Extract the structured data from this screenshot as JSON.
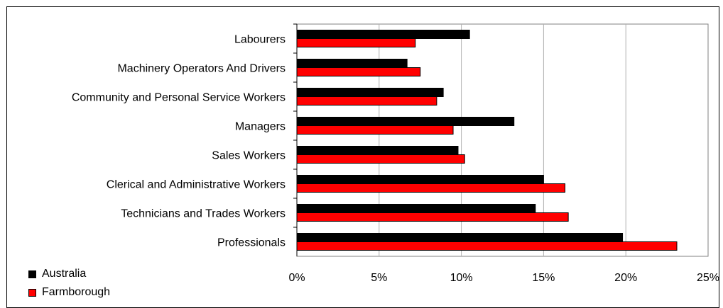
{
  "chart_data": {
    "type": "bar",
    "orientation": "horizontal",
    "title": "",
    "xlabel": "",
    "ylabel": "",
    "categories": [
      "Labourers",
      "Machinery Operators And Drivers",
      "Community and Personal Service Workers",
      "Managers",
      "Sales Workers",
      "Clerical and Administrative Workers",
      "Technicians and Trades Workers",
      "Professionals"
    ],
    "series": [
      {
        "name": "Australia",
        "color": "#000000",
        "values": [
          10.5,
          6.7,
          8.9,
          13.2,
          9.8,
          15.0,
          14.5,
          19.8
        ]
      },
      {
        "name": "Farmborough",
        "color": "#ff0000",
        "values": [
          7.2,
          7.5,
          8.5,
          9.5,
          10.2,
          16.3,
          16.5,
          23.1
        ]
      }
    ],
    "xlim": [
      0,
      25
    ],
    "x_ticks": [
      0,
      5,
      10,
      15,
      20,
      25
    ],
    "x_tick_labels": [
      "0%",
      "5%",
      "10%",
      "15%",
      "20%",
      "25%"
    ],
    "grid": "vertical",
    "legend_position": "bottom-left"
  }
}
